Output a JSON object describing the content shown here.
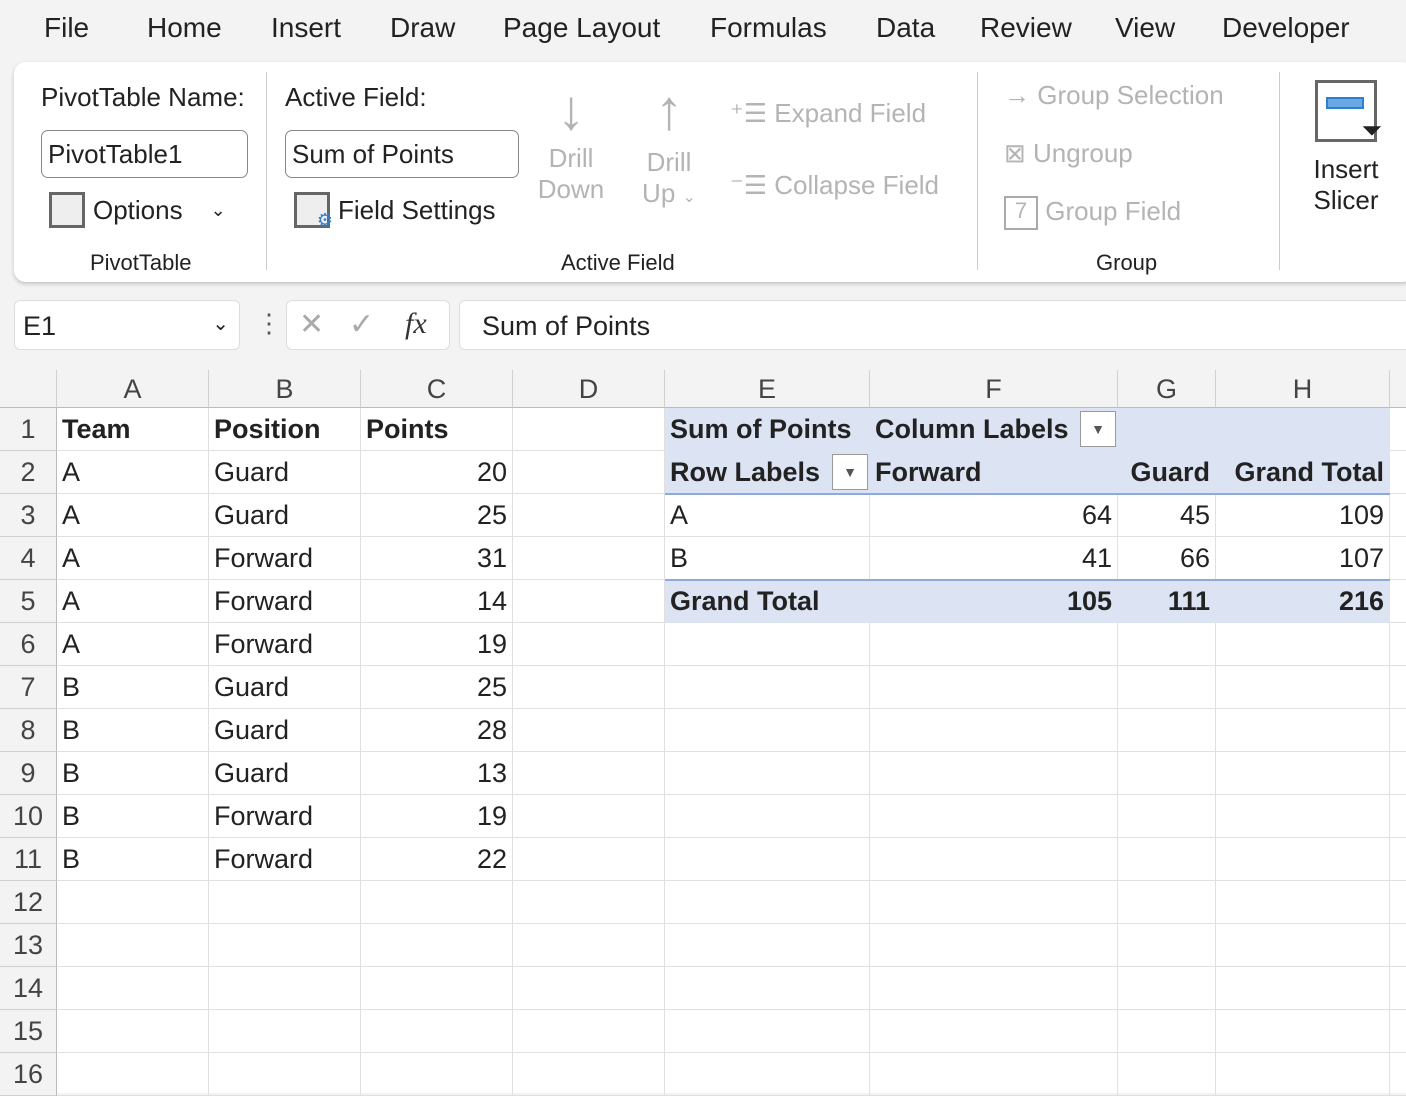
{
  "menu": [
    "File",
    "Home",
    "Insert",
    "Draw",
    "Page Layout",
    "Formulas",
    "Data",
    "Review",
    "View",
    "Developer"
  ],
  "ribbon": {
    "pivot_name_label": "PivotTable Name:",
    "pivot_name_value": "PivotTable1",
    "options": "Options",
    "pivot_group": "PivotTable",
    "active_field_label": "Active Field:",
    "active_field_value": "Sum of Points",
    "field_settings": "Field Settings",
    "drill_down": [
      "Drill",
      "Down"
    ],
    "drill_up": [
      "Drill",
      "Up"
    ],
    "expand_field": "Expand Field",
    "collapse_field": "Collapse Field",
    "active_field_group": "Active Field",
    "group_selection": "Group Selection",
    "ungroup": "Ungroup",
    "group_field": "Group Field",
    "group_group": "Group",
    "insert_slicer": [
      "Insert",
      "Slicer"
    ]
  },
  "formula_bar": {
    "name_box": "E1",
    "formula": "Sum of Points"
  },
  "columns": [
    "A",
    "B",
    "C",
    "D",
    "E",
    "F",
    "G",
    "H"
  ],
  "rows": [
    "1",
    "2",
    "3",
    "4",
    "5",
    "6",
    "7",
    "8",
    "9",
    "10",
    "11",
    "12",
    "13",
    "14",
    "15",
    "16"
  ],
  "source": {
    "headers": [
      "Team",
      "Position",
      "Points"
    ],
    "data": [
      [
        "A",
        "Guard",
        "20"
      ],
      [
        "A",
        "Guard",
        "25"
      ],
      [
        "A",
        "Forward",
        "31"
      ],
      [
        "A",
        "Forward",
        "14"
      ],
      [
        "A",
        "Forward",
        "19"
      ],
      [
        "B",
        "Guard",
        "25"
      ],
      [
        "B",
        "Guard",
        "28"
      ],
      [
        "B",
        "Guard",
        "13"
      ],
      [
        "B",
        "Forward",
        "19"
      ],
      [
        "B",
        "Forward",
        "22"
      ]
    ]
  },
  "pivot": {
    "value_label": "Sum of Points",
    "column_labels": "Column Labels",
    "row_labels": "Row Labels",
    "col_headers": [
      "Forward",
      "Guard",
      "Grand Total"
    ],
    "rows": [
      [
        "A",
        "64",
        "45",
        "109"
      ],
      [
        "B",
        "41",
        "66",
        "107"
      ]
    ],
    "total": [
      "Grand Total",
      "105",
      "111",
      "216"
    ],
    "fill_color": "#dce3f3"
  }
}
